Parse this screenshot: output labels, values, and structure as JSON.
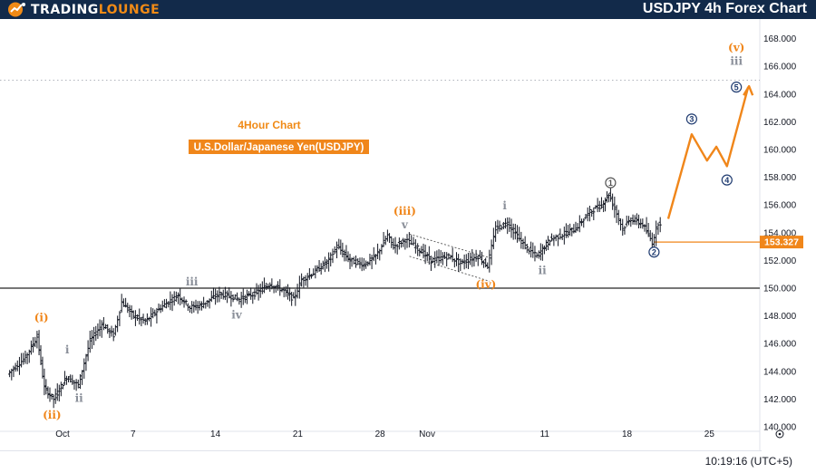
{
  "header": {
    "logo_text_a": "TRADING",
    "logo_text_b": "LOUNGE",
    "title": "USDJPY 4h Forex Chart"
  },
  "chart_data": {
    "type": "candlestick",
    "title": "USDJPY 4h Forex Chart",
    "subtitle": "4Hour Chart",
    "instrument_label": "U.S.Dollar/Japanese Yen(USDJPY)",
    "ylim": [
      139.0,
      168.8
    ],
    "y_ticks": [
      "140.000",
      "142.000",
      "144.000",
      "146.000",
      "148.000",
      "150.000",
      "152.000",
      "154.000",
      "156.000",
      "158.000",
      "160.000",
      "162.000",
      "164.000",
      "166.000",
      "168.000"
    ],
    "x_ticks": [
      {
        "label": "Oct",
        "day": 0
      },
      {
        "label": "7",
        "day": 6
      },
      {
        "label": "14",
        "day": 13
      },
      {
        "label": "21",
        "day": 20
      },
      {
        "label": "28",
        "day": 27
      },
      {
        "label": "Nov",
        "day": 31
      },
      {
        "label": "11",
        "day": 41
      },
      {
        "label": "18",
        "day": 48
      },
      {
        "label": "25",
        "day": 55
      }
    ],
    "last_price": "153.327",
    "horizontal_line": 150.0,
    "dotted_line": 165.0,
    "price_path": [
      [
        -4.5,
        143.8
      ],
      [
        -3,
        145.0
      ],
      [
        -2,
        146.5
      ],
      [
        -1.4,
        142.8
      ],
      [
        -0.6,
        142.0
      ],
      [
        0.5,
        143.6
      ],
      [
        1.5,
        143.0
      ],
      [
        2.5,
        146.2
      ],
      [
        3.5,
        147.4
      ],
      [
        4.5,
        146.6
      ],
      [
        5.2,
        149.0
      ],
      [
        6.2,
        148.0
      ],
      [
        7.2,
        147.6
      ],
      [
        8.5,
        148.6
      ],
      [
        10,
        149.5
      ],
      [
        11,
        148.6
      ],
      [
        12,
        148.8
      ],
      [
        13.5,
        149.6
      ],
      [
        14.5,
        149.4
      ],
      [
        15.2,
        149.2
      ],
      [
        16.5,
        149.6
      ],
      [
        17.8,
        150.3
      ],
      [
        19,
        149.8
      ],
      [
        19.8,
        149.2
      ],
      [
        20.5,
        150.6
      ],
      [
        21.5,
        151.1
      ],
      [
        22.8,
        152.0
      ],
      [
        23.5,
        153.0
      ],
      [
        24.6,
        152.0
      ],
      [
        25.8,
        151.7
      ],
      [
        26.8,
        152.3
      ],
      [
        27.8,
        153.8
      ],
      [
        28.3,
        153.0
      ],
      [
        29.3,
        153.5
      ],
      [
        30.2,
        153.0
      ],
      [
        31.5,
        152.0
      ],
      [
        33,
        152.3
      ],
      [
        34,
        151.8
      ],
      [
        35.5,
        152.3
      ],
      [
        36.3,
        151.6
      ],
      [
        37,
        154.3
      ],
      [
        38,
        154.7
      ],
      [
        39.5,
        153.0
      ],
      [
        40.5,
        152.3
      ],
      [
        41.6,
        153.5
      ],
      [
        42.5,
        153.8
      ],
      [
        43.8,
        154.3
      ],
      [
        45,
        155.5
      ],
      [
        46,
        156.0
      ],
      [
        46.6,
        156.8
      ],
      [
        47.8,
        154.3
      ],
      [
        48.5,
        155.0
      ],
      [
        49.5,
        154.6
      ],
      [
        50.3,
        153.3
      ],
      [
        51.0,
        155.2
      ]
    ],
    "projection_path": [
      [
        51.5,
        155.0
      ],
      [
        53.5,
        161.1
      ],
      [
        54.8,
        159.2
      ],
      [
        55.6,
        160.2
      ],
      [
        56.5,
        158.8
      ],
      [
        58.3,
        164.5
      ]
    ],
    "channel_lines": [
      {
        "from": [
          29.5,
          153.9
        ],
        "to": [
          36.3,
          152.2
        ]
      },
      {
        "from": [
          29.5,
          152.3
        ],
        "to": [
          36.3,
          150.5
        ]
      }
    ],
    "wave_labels": [
      {
        "text": "(i)",
        "day": -1.8,
        "price": 147.6,
        "style": "orange"
      },
      {
        "text": "(ii)",
        "day": -0.9,
        "price": 140.6,
        "style": "orange"
      },
      {
        "text": "i",
        "day": 0.4,
        "price": 145.3,
        "style": "gray"
      },
      {
        "text": "ii",
        "day": 1.4,
        "price": 141.8,
        "style": "gray"
      },
      {
        "text": "iii",
        "day": 11.0,
        "price": 150.2,
        "style": "gray"
      },
      {
        "text": "iv",
        "day": 14.8,
        "price": 147.8,
        "style": "gray"
      },
      {
        "text": "(iii)",
        "day": 29.1,
        "price": 155.3,
        "style": "orange"
      },
      {
        "text": "v",
        "day": 29.1,
        "price": 154.3,
        "style": "gray"
      },
      {
        "text": "(iv)",
        "day": 36.0,
        "price": 150.0,
        "style": "orange"
      },
      {
        "text": "i",
        "day": 37.6,
        "price": 155.7,
        "style": "gray"
      },
      {
        "text": "ii",
        "day": 40.8,
        "price": 151.0,
        "style": "gray"
      },
      {
        "text": "(v)",
        "day": 57.3,
        "price": 167.1,
        "style": "orange"
      },
      {
        "text": "iii",
        "day": 57.3,
        "price": 166.1,
        "style": "gray"
      }
    ],
    "circled_labels": [
      {
        "text": "1",
        "day": 46.6,
        "price": 157.6,
        "style": "gray"
      },
      {
        "text": "2",
        "day": 50.3,
        "price": 152.6,
        "style": "navy"
      },
      {
        "text": "3",
        "day": 53.5,
        "price": 162.2,
        "style": "navy"
      },
      {
        "text": "4",
        "day": 56.5,
        "price": 157.8,
        "style": "navy"
      },
      {
        "text": "5",
        "day": 57.3,
        "price": 164.5,
        "style": "navy"
      }
    ]
  },
  "footer": {
    "time": "10:19:16 (UTC+5)"
  }
}
